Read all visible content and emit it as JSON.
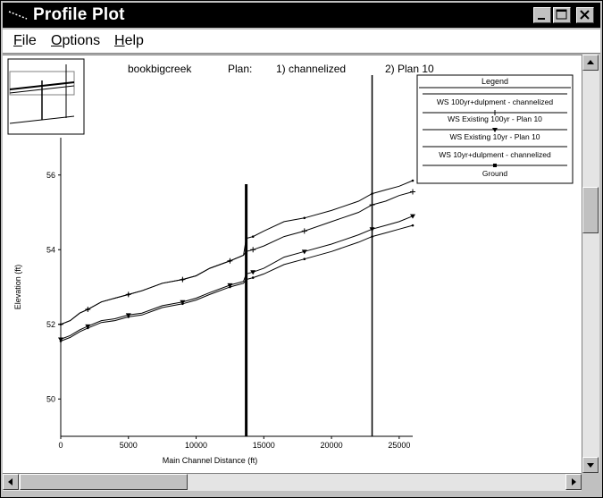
{
  "window": {
    "title": "Profile Plot"
  },
  "menu": [
    {
      "key": "F",
      "rest": "ile"
    },
    {
      "key": "O",
      "rest": "ptions"
    },
    {
      "key": "H",
      "rest": "elp"
    }
  ],
  "header": {
    "river": "bookbigcreek",
    "plan_label": "Plan:",
    "plan1": "1) channelized",
    "plan2": "2) Plan 10"
  },
  "legend": {
    "title": "Legend",
    "entries": [
      "WS 100yr+dulpment - channelized",
      "WS Existing 100yr - Plan 10",
      "WS Existing 10yr - Plan 10",
      "WS 10yr+dulpment - channelized",
      "Ground"
    ]
  },
  "chart_data": {
    "type": "line",
    "xlabel": "Main Channel Distance (ft)",
    "ylabel": "Elevation (ft)",
    "xlim": [
      0,
      26000
    ],
    "ylim": [
      49,
      57
    ],
    "xticks": [
      0,
      5000,
      10000,
      15000,
      20000,
      25000
    ],
    "yticks": [
      50,
      52,
      54,
      56
    ],
    "bridges_x": [
      13700,
      23000
    ],
    "series": [
      {
        "name": "WS 100yr+dulpment - channelized",
        "marker": "none",
        "color": "#000000",
        "x": [
          0,
          700,
          1400,
          2000,
          3000,
          4000,
          5000,
          6000,
          7500,
          9000,
          10000,
          11000,
          12500,
          13500,
          13700,
          14200,
          15000,
          16500,
          18000,
          20000,
          22000,
          23000,
          24000,
          25000,
          26000
        ],
        "y": [
          52.0,
          52.1,
          52.3,
          52.4,
          52.6,
          52.7,
          52.8,
          52.9,
          53.1,
          53.2,
          53.3,
          53.5,
          53.7,
          53.85,
          54.3,
          54.35,
          54.5,
          54.75,
          54.85,
          55.05,
          55.3,
          55.5,
          55.6,
          55.7,
          55.85
        ]
      },
      {
        "name": "WS Existing 100yr - Plan 10",
        "marker": "plus",
        "color": "#000000",
        "x": [
          0,
          700,
          1400,
          2000,
          3000,
          4000,
          5000,
          6000,
          7500,
          9000,
          10000,
          11000,
          12500,
          13500,
          13700,
          14200,
          15000,
          16500,
          18000,
          20000,
          22000,
          23000,
          24000,
          25000,
          26000
        ],
        "y": [
          52.0,
          52.1,
          52.3,
          52.4,
          52.6,
          52.7,
          52.8,
          52.9,
          53.1,
          53.2,
          53.3,
          53.5,
          53.7,
          53.85,
          53.95,
          54.0,
          54.1,
          54.35,
          54.5,
          54.75,
          55.0,
          55.2,
          55.3,
          55.45,
          55.55
        ]
      },
      {
        "name": "WS Existing 10yr - Plan 10",
        "marker": "triangle",
        "color": "#000000",
        "x": [
          0,
          700,
          1400,
          2000,
          3000,
          4000,
          5000,
          6000,
          7500,
          9000,
          10000,
          11000,
          12500,
          13500,
          13700,
          14200,
          15000,
          16500,
          18000,
          20000,
          22000,
          23000,
          24000,
          25000,
          26000
        ],
        "y": [
          51.6,
          51.7,
          51.85,
          51.95,
          52.1,
          52.15,
          52.25,
          52.3,
          52.5,
          52.6,
          52.7,
          52.85,
          53.05,
          53.15,
          53.35,
          53.4,
          53.5,
          53.8,
          53.95,
          54.15,
          54.4,
          54.55,
          54.65,
          54.75,
          54.9
        ]
      },
      {
        "name": "WS 10yr+dulpment - channelized",
        "marker": "none",
        "color": "#000000",
        "x": [
          0,
          700,
          1400,
          2000,
          3000,
          4000,
          5000,
          6000,
          7500,
          9000,
          10000,
          11000,
          12500,
          13500,
          13700,
          14200,
          15000,
          16500,
          18000,
          20000,
          22000,
          23000,
          24000,
          25000,
          26000
        ],
        "y": [
          51.55,
          51.65,
          51.8,
          51.9,
          52.05,
          52.1,
          52.2,
          52.25,
          52.45,
          52.55,
          52.65,
          52.8,
          53.0,
          53.1,
          53.2,
          53.25,
          53.35,
          53.6,
          53.75,
          53.95,
          54.2,
          54.35,
          54.45,
          54.55,
          54.65
        ]
      },
      {
        "name": "Ground",
        "marker": "square",
        "color": "#000000",
        "x": [],
        "y": []
      }
    ]
  },
  "icons": {
    "minimize": "minimize-icon",
    "maximize": "maximize-icon",
    "close": "close-icon"
  }
}
